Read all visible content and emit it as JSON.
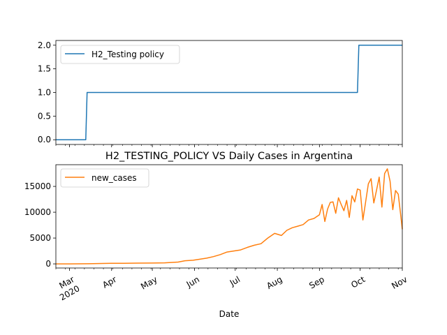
{
  "chart_data": [
    {
      "type": "line",
      "title": "",
      "xlabel": "",
      "ylabel": "",
      "ylim": [
        -0.1,
        2.1
      ],
      "yticks": [
        0.0,
        0.5,
        1.0,
        1.5,
        2.0
      ],
      "ytick_labels": [
        "0.0",
        "0.5",
        "1.0",
        "1.5",
        "2.0"
      ],
      "legend": "upper-left",
      "x_range": [
        "2020-02-20",
        "2020-11-01"
      ],
      "series": [
        {
          "name": "H2_Testing policy",
          "color": "#1f77b4",
          "x": [
            "2020-02-20",
            "2020-03-13",
            "2020-03-14",
            "2020-07-01",
            "2020-07-02",
            "2020-09-29",
            "2020-09-30",
            "2020-11-01"
          ],
          "values": [
            0,
            0,
            1,
            1,
            1,
            1,
            2,
            2
          ]
        }
      ]
    },
    {
      "type": "line",
      "title": "H2_TESTING_POLICY VS Daily Cases in Argentina",
      "xlabel": "Date",
      "ylabel": "",
      "ylim": [
        -800,
        19200
      ],
      "yticks": [
        0,
        5000,
        10000,
        15000
      ],
      "ytick_labels": [
        "0",
        "5000",
        "10000",
        "15000"
      ],
      "legend": "upper-left",
      "x_range": [
        "2020-02-20",
        "2020-11-01"
      ],
      "x_ticks": [
        "2020-03-01",
        "2020-04-01",
        "2020-05-01",
        "2020-06-01",
        "2020-07-01",
        "2020-08-01",
        "2020-09-01",
        "2020-10-01",
        "2020-11-01"
      ],
      "x_tick_labels": [
        "Mar\n2020",
        "Apr",
        "May",
        "Jun",
        "Jul",
        "Aug",
        "Sep",
        "Oct",
        "Nov"
      ],
      "series": [
        {
          "name": "new_cases",
          "color": "#ff7f0e",
          "x": [
            "2020-02-20",
            "2020-03-01",
            "2020-03-15",
            "2020-03-25",
            "2020-04-01",
            "2020-04-10",
            "2020-04-20",
            "2020-05-01",
            "2020-05-10",
            "2020-05-20",
            "2020-05-25",
            "2020-05-31",
            "2020-06-05",
            "2020-06-10",
            "2020-06-15",
            "2020-06-20",
            "2020-06-25",
            "2020-06-30",
            "2020-07-05",
            "2020-07-10",
            "2020-07-15",
            "2020-07-20",
            "2020-07-25",
            "2020-07-30",
            "2020-08-04",
            "2020-08-08",
            "2020-08-12",
            "2020-08-16",
            "2020-08-20",
            "2020-08-24",
            "2020-08-28",
            "2020-09-01",
            "2020-09-03",
            "2020-09-05",
            "2020-09-07",
            "2020-09-09",
            "2020-09-11",
            "2020-09-13",
            "2020-09-15",
            "2020-09-17",
            "2020-09-19",
            "2020-09-21",
            "2020-09-23",
            "2020-09-25",
            "2020-09-27",
            "2020-09-29",
            "2020-10-01",
            "2020-10-03",
            "2020-10-05",
            "2020-10-07",
            "2020-10-09",
            "2020-10-11",
            "2020-10-13",
            "2020-10-15",
            "2020-10-17",
            "2020-10-19",
            "2020-10-21",
            "2020-10-23",
            "2020-10-25",
            "2020-10-27",
            "2020-10-29",
            "2020-10-31",
            "2020-11-01"
          ],
          "values": [
            0,
            0,
            20,
            80,
            100,
            110,
            150,
            160,
            200,
            350,
            600,
            700,
            900,
            1100,
            1400,
            1800,
            2300,
            2500,
            2700,
            3200,
            3600,
            3900,
            5000,
            5900,
            5500,
            6500,
            7000,
            7300,
            7600,
            8500,
            8800,
            9500,
            11500,
            8200,
            10600,
            11900,
            12000,
            9800,
            12800,
            11500,
            10300,
            12300,
            9000,
            13200,
            12000,
            14500,
            14300,
            8500,
            12000,
            15500,
            16500,
            11800,
            14200,
            16800,
            11000,
            17500,
            18400,
            16000,
            10500,
            14200,
            13500,
            9000,
            6700
          ]
        }
      ]
    }
  ]
}
